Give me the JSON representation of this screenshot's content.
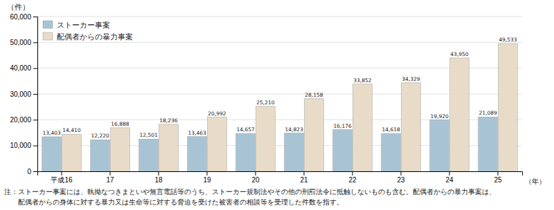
{
  "chart_data": {
    "type": "bar",
    "categories": [
      "平成16",
      "17",
      "18",
      "19",
      "20",
      "21",
      "22",
      "23",
      "24",
      "25"
    ],
    "series": [
      {
        "name": "ストーカー事案",
        "color": "#a8c4d4",
        "values": [
          13403,
          12220,
          12501,
          13463,
          14657,
          14823,
          16176,
          14618,
          19920,
          21089
        ],
        "value_labels": [
          "13,403",
          "12,220",
          "12,501",
          "13,463",
          "14,657",
          "14,823",
          "16,176",
          "14,618",
          "19,920",
          "21,089"
        ]
      },
      {
        "name": "配偶者からの暴力事案",
        "color": "#e8dcc8",
        "values": [
          14410,
          16888,
          18236,
          20992,
          25210,
          28158,
          33852,
          34329,
          43950,
          49533
        ],
        "value_labels": [
          "14,410",
          "16,888",
          "18,236",
          "20,992",
          "25,210",
          "28,158",
          "33,852",
          "34,329",
          "43,950",
          "49,533"
        ]
      }
    ],
    "ylabel": "（件）",
    "xlabel": "（年）",
    "ylim": [
      0,
      60000
    ],
    "yticks": [
      0,
      {
        "value": 10000,
        "label": "10,000"
      },
      {
        "value": 20000,
        "label": "20,000"
      },
      {
        "value": 30000,
        "label": "30,000"
      },
      {
        "value": 40000,
        "label": "40,000"
      },
      {
        "value": 50000,
        "label": "50,000"
      },
      {
        "value": 60000,
        "label": "60,000"
      }
    ],
    "grid": true,
    "legend": "top-left",
    "data_labels": true,
    "annotations": [
      "注：ストーカー事案には、執拗なつきまといや無言電話等のうち、ストーカー規制法やその他の刑罰法令に抵触しないものも含む。配偶者からの暴力事案は、",
      "　　配偶者からの身体に対する暴力又は生命等に対する脅迫を受けた被害者の相談等を受理した件数を指す。"
    ]
  }
}
